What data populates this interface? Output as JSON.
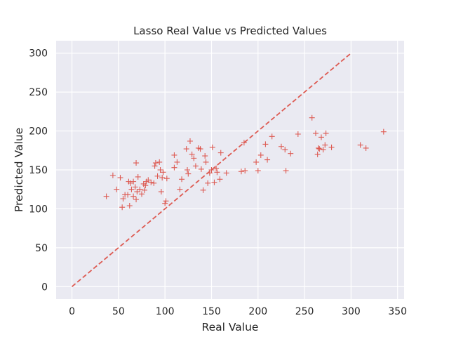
{
  "chart_data": {
    "type": "scatter",
    "title": "Lasso Real Value vs Predicted Values",
    "xlabel": "Real Value",
    "ylabel": "Predicted Value",
    "xlim": [
      -17,
      357
    ],
    "ylim": [
      -16,
      316
    ],
    "xticks": [
      0,
      50,
      100,
      150,
      200,
      250,
      300,
      350
    ],
    "yticks": [
      0,
      50,
      100,
      150,
      200,
      250,
      300
    ],
    "grid": true,
    "background_color": "#EAEAF2",
    "marker_color": "#DD5A52",
    "marker": "plus",
    "reference_line": {
      "x": [
        0,
        300
      ],
      "y": [
        0,
        300
      ],
      "style": "dashed",
      "color": "#DD5A52"
    },
    "points": [
      [
        37,
        116
      ],
      [
        44,
        143
      ],
      [
        48,
        125
      ],
      [
        52,
        140
      ],
      [
        54,
        102
      ],
      [
        55,
        113
      ],
      [
        57,
        118
      ],
      [
        60,
        118
      ],
      [
        61,
        135
      ],
      [
        62,
        104
      ],
      [
        63,
        133
      ],
      [
        64,
        125
      ],
      [
        66,
        116
      ],
      [
        66,
        135
      ],
      [
        68,
        128
      ],
      [
        69,
        112
      ],
      [
        69,
        159
      ],
      [
        70,
        122
      ],
      [
        71,
        141
      ],
      [
        73,
        125
      ],
      [
        75,
        119
      ],
      [
        77,
        132
      ],
      [
        78,
        124
      ],
      [
        79,
        130
      ],
      [
        80,
        135
      ],
      [
        82,
        137
      ],
      [
        85,
        134
      ],
      [
        88,
        133
      ],
      [
        89,
        155
      ],
      [
        90,
        159
      ],
      [
        92,
        142
      ],
      [
        94,
        160
      ],
      [
        95,
        150
      ],
      [
        96,
        122
      ],
      [
        97,
        140
      ],
      [
        98,
        147
      ],
      [
        100,
        107
      ],
      [
        101,
        110
      ],
      [
        102,
        139
      ],
      [
        110,
        153
      ],
      [
        110,
        169
      ],
      [
        113,
        160
      ],
      [
        116,
        125
      ],
      [
        118,
        138
      ],
      [
        123,
        177
      ],
      [
        124,
        150
      ],
      [
        125,
        145
      ],
      [
        127,
        187
      ],
      [
        129,
        170
      ],
      [
        131,
        165
      ],
      [
        133,
        155
      ],
      [
        136,
        178
      ],
      [
        138,
        177
      ],
      [
        139,
        151
      ],
      [
        141,
        124
      ],
      [
        143,
        168
      ],
      [
        144,
        160
      ],
      [
        146,
        133
      ],
      [
        148,
        146
      ],
      [
        150,
        150
      ],
      [
        151,
        179
      ],
      [
        153,
        134
      ],
      [
        155,
        152
      ],
      [
        156,
        147
      ],
      [
        159,
        138
      ],
      [
        160,
        172
      ],
      [
        166,
        146
      ],
      [
        182,
        148
      ],
      [
        185,
        185
      ],
      [
        186,
        149
      ],
      [
        198,
        160
      ],
      [
        200,
        149
      ],
      [
        203,
        169
      ],
      [
        208,
        183
      ],
      [
        210,
        163
      ],
      [
        215,
        193
      ],
      [
        225,
        180
      ],
      [
        229,
        176
      ],
      [
        230,
        149
      ],
      [
        235,
        171
      ],
      [
        243,
        196
      ],
      [
        258,
        217
      ],
      [
        262,
        197
      ],
      [
        264,
        170
      ],
      [
        265,
        178
      ],
      [
        266,
        177
      ],
      [
        268,
        192
      ],
      [
        270,
        176
      ],
      [
        272,
        182
      ],
      [
        273,
        197
      ],
      [
        279,
        179
      ],
      [
        310,
        182
      ],
      [
        316,
        178
      ],
      [
        335,
        199
      ]
    ]
  }
}
